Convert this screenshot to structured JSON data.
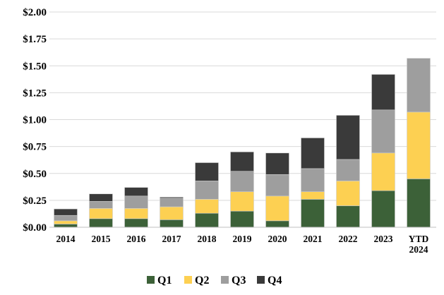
{
  "chart_data": {
    "type": "bar",
    "stacked": true,
    "title": "",
    "xlabel": "",
    "ylabel": "",
    "ylim": [
      0,
      2.0
    ],
    "yticks": [
      "$0.00",
      "$0.25",
      "$0.50",
      "$0.75",
      "$1.00",
      "$1.25",
      "$1.50",
      "$1.75",
      "$2.00"
    ],
    "ytick_values": [
      0,
      0.25,
      0.5,
      0.75,
      1.0,
      1.25,
      1.5,
      1.75,
      2.0
    ],
    "grid": true,
    "legend_position": "bottom",
    "categories": [
      "2014",
      "2015",
      "2016",
      "2017",
      "2018",
      "2019",
      "2020",
      "2021",
      "2022",
      "2023",
      "YTD 2024"
    ],
    "series": [
      {
        "name": "Q1",
        "color": "#3c6138",
        "values": [
          0.03,
          0.08,
          0.08,
          0.07,
          0.13,
          0.15,
          0.06,
          0.26,
          0.2,
          0.34,
          0.45
        ]
      },
      {
        "name": "Q2",
        "color": "#fdd052",
        "values": [
          0.03,
          0.095,
          0.095,
          0.12,
          0.13,
          0.18,
          0.23,
          0.07,
          0.23,
          0.35,
          0.62
        ]
      },
      {
        "name": "Q3",
        "color": "#9e9e9e",
        "values": [
          0.05,
          0.065,
          0.115,
          0.08,
          0.17,
          0.19,
          0.2,
          0.215,
          0.2,
          0.4,
          0.5
        ]
      },
      {
        "name": "Q4",
        "color": "#3a3a3a",
        "values": [
          0.06,
          0.07,
          0.08,
          0.01,
          0.17,
          0.18,
          0.2,
          0.285,
          0.41,
          0.33,
          0
        ]
      }
    ]
  }
}
